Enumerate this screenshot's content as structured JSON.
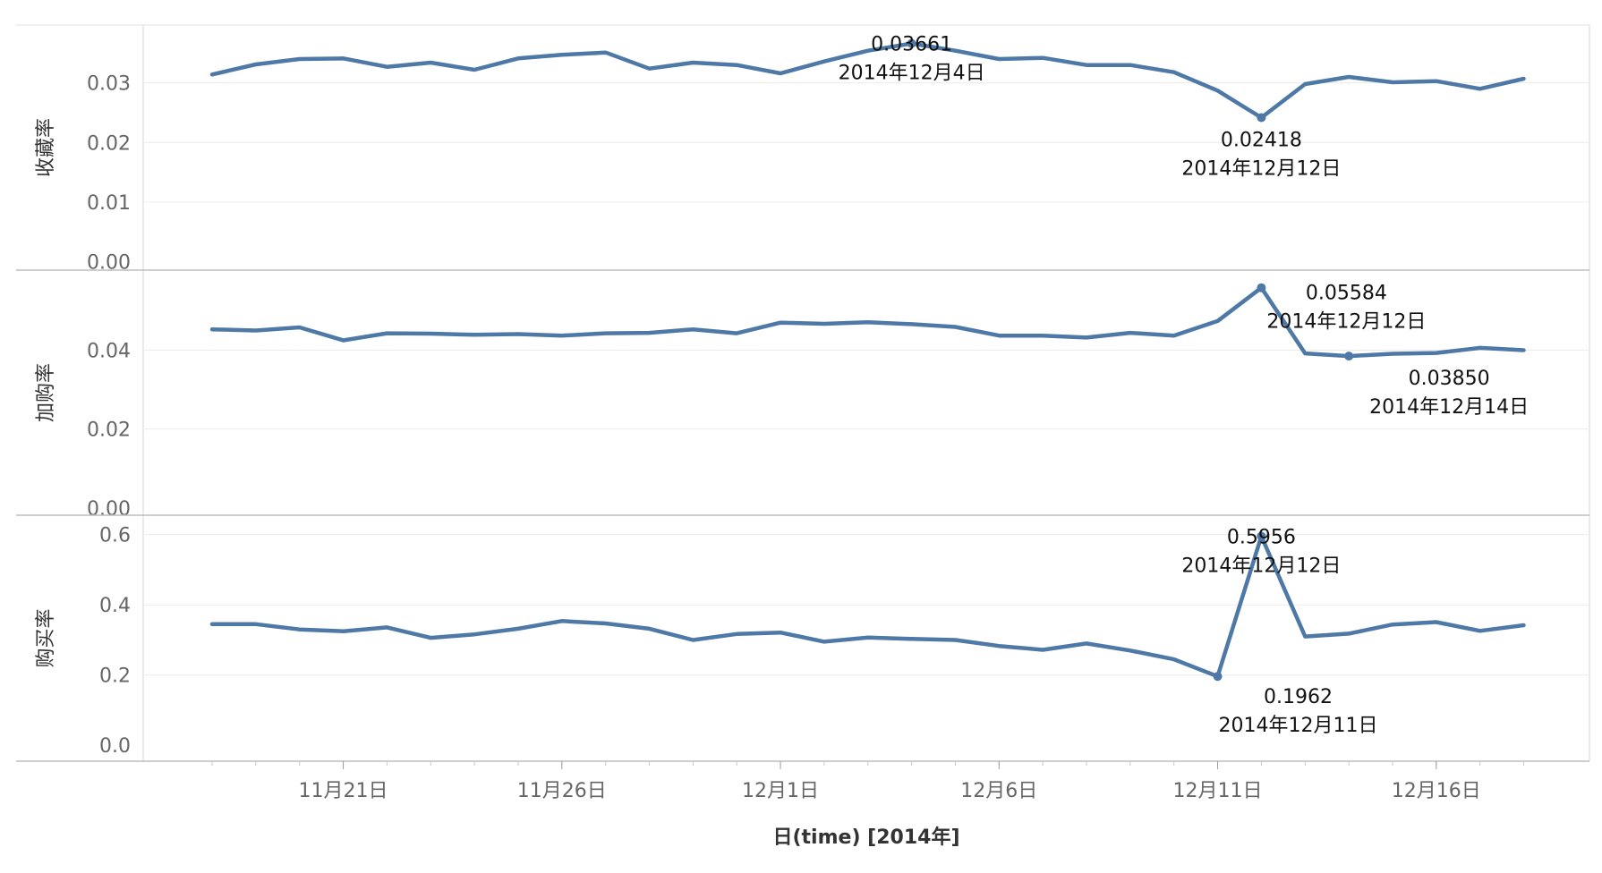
{
  "chart_data": {
    "type": "line",
    "x_title": "日(time) [2014年]",
    "x_dates": [
      "2014-11-18",
      "2014-11-19",
      "2014-11-20",
      "2014-11-21",
      "2014-11-22",
      "2014-11-23",
      "2014-11-24",
      "2014-11-25",
      "2014-11-26",
      "2014-11-27",
      "2014-11-28",
      "2014-11-29",
      "2014-11-30",
      "2014-12-01",
      "2014-12-02",
      "2014-12-03",
      "2014-12-04",
      "2014-12-05",
      "2014-12-06",
      "2014-12-07",
      "2014-12-08",
      "2014-12-09",
      "2014-12-10",
      "2014-12-11",
      "2014-12-12",
      "2014-12-13",
      "2014-12-14",
      "2014-12-15",
      "2014-12-16",
      "2014-12-17",
      "2014-12-18"
    ],
    "x_ticks": [
      {
        "date": "2014-11-21",
        "label": "11月21日"
      },
      {
        "date": "2014-11-26",
        "label": "11月26日"
      },
      {
        "date": "2014-12-01",
        "label": "12月1日"
      },
      {
        "date": "2014-12-06",
        "label": "12月6日"
      },
      {
        "date": "2014-12-11",
        "label": "12月11日"
      },
      {
        "date": "2014-12-16",
        "label": "12月16日"
      }
    ],
    "panes": [
      {
        "ylabel": "收藏率",
        "ylim": [
          -0.0005,
          0.0385
        ],
        "yticks": [
          {
            "value": 0.0,
            "label": "0.00"
          },
          {
            "value": 0.01,
            "label": "0.01"
          },
          {
            "value": 0.02,
            "label": "0.02"
          },
          {
            "value": 0.03,
            "label": "0.03"
          }
        ],
        "values": [
          0.0314,
          0.0331,
          0.034,
          0.0341,
          0.0327,
          0.0334,
          0.0322,
          0.0341,
          0.0347,
          0.0351,
          0.0324,
          0.0334,
          0.033,
          0.0316,
          0.0336,
          0.0354,
          0.03661,
          0.0354,
          0.034,
          0.0342,
          0.033,
          0.033,
          0.0318,
          0.0287,
          0.02418,
          0.0298,
          0.031,
          0.0301,
          0.0303,
          0.029,
          0.0307
        ],
        "annotations": [
          {
            "date": "2014-12-04",
            "value_label": "0.03661",
            "date_label": "2014年12月4日"
          },
          {
            "date": "2014-12-12",
            "value_label": "0.02418",
            "date_label": "2014年12月12日"
          }
        ]
      },
      {
        "ylabel": "加购率",
        "ylim": [
          -0.0005,
          0.0585
        ],
        "yticks": [
          {
            "value": 0.0,
            "label": "0.00"
          },
          {
            "value": 0.02,
            "label": "0.02"
          },
          {
            "value": 0.04,
            "label": "0.04"
          }
        ],
        "values": [
          0.0453,
          0.045,
          0.0458,
          0.0425,
          0.0443,
          0.0442,
          0.0439,
          0.0441,
          0.0437,
          0.0443,
          0.0444,
          0.0453,
          0.0443,
          0.047,
          0.0467,
          0.0471,
          0.0466,
          0.0459,
          0.0437,
          0.0437,
          0.0432,
          0.0444,
          0.0437,
          0.0474,
          0.05584,
          0.0392,
          0.0385,
          0.0391,
          0.0393,
          0.0406,
          0.04
        ],
        "annotations": [
          {
            "date": "2014-12-12",
            "value_label": "0.05584",
            "date_label": "2014年12月12日"
          },
          {
            "date": "2014-12-14",
            "value_label": "0.03850",
            "date_label": "2014年12月14日"
          }
        ]
      },
      {
        "ylabel": "购买率",
        "ylim": [
          -0.03,
          0.635
        ],
        "yticks": [
          {
            "value": 0.0,
            "label": "0.0"
          },
          {
            "value": 0.2,
            "label": "0.2"
          },
          {
            "value": 0.4,
            "label": "0.4"
          },
          {
            "value": 0.6,
            "label": "0.6"
          }
        ],
        "values": [
          0.345,
          0.345,
          0.33,
          0.325,
          0.336,
          0.306,
          0.316,
          0.332,
          0.354,
          0.347,
          0.332,
          0.3,
          0.317,
          0.321,
          0.295,
          0.307,
          0.303,
          0.3,
          0.283,
          0.272,
          0.29,
          0.27,
          0.245,
          0.1962,
          0.5956,
          0.31,
          0.318,
          0.344,
          0.351,
          0.326,
          0.342
        ],
        "annotations": [
          {
            "date": "2014-12-12",
            "value_label": "0.5956",
            "date_label": "2014年12月12日"
          },
          {
            "date": "2014-12-11",
            "value_label": "0.1962",
            "date_label": "2014年12月11日"
          }
        ]
      }
    ],
    "grid": true,
    "line_color": "#4e79a7"
  }
}
